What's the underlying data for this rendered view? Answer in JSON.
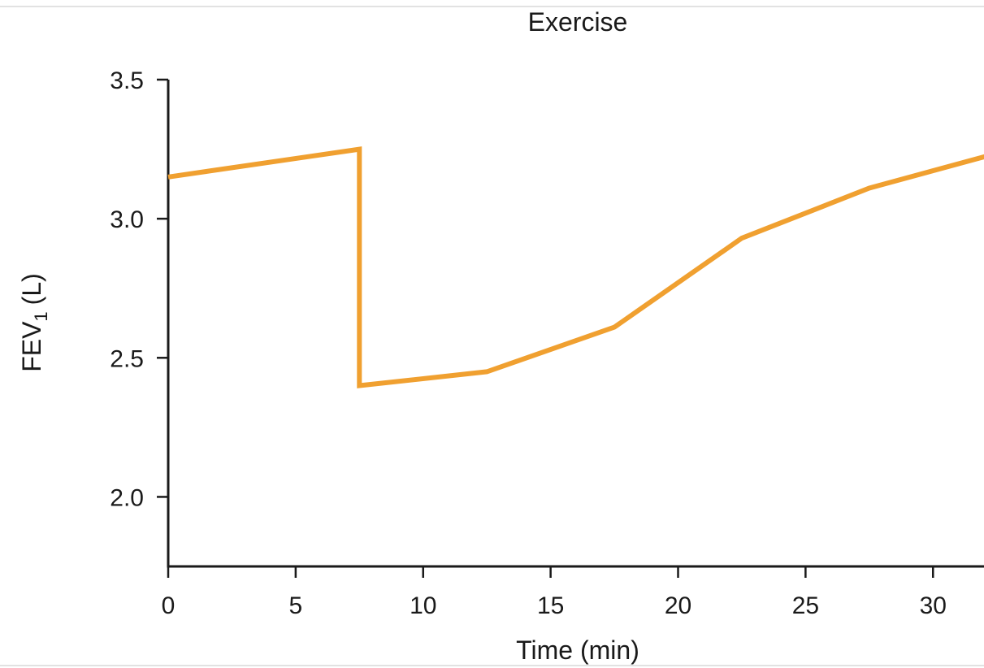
{
  "chart_data": {
    "type": "line",
    "title": "Exercise",
    "xlabel": "Time (min)",
    "ylabel": {
      "main": "FEV",
      "subscript": "1",
      "unit": "(L)"
    },
    "xlim": [
      0,
      32
    ],
    "ylim": [
      1.75,
      3.5
    ],
    "x_ticks": [
      0,
      5,
      10,
      15,
      20,
      25,
      30
    ],
    "y_ticks": [
      2.0,
      2.5,
      3.0,
      3.5
    ],
    "y_tick_labels": [
      "2.0",
      "2.5",
      "3.0",
      "3.5"
    ],
    "grid": false,
    "series": [
      {
        "color": "#f0a030",
        "x": [
          0,
          7.5,
          7.5,
          12.5,
          17.5,
          22.5,
          27.5,
          32.3
        ],
        "y": [
          3.15,
          3.25,
          2.4,
          2.45,
          2.61,
          2.93,
          3.11,
          3.23
        ]
      }
    ]
  }
}
